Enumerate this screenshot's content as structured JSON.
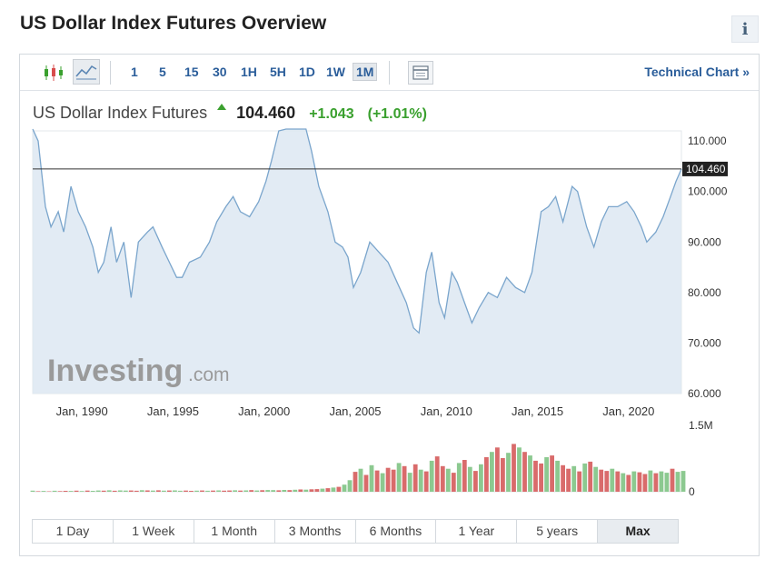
{
  "header": {
    "title": "US Dollar Index Futures Overview",
    "info_icon": "i"
  },
  "toolbar": {
    "timeframes": [
      "1",
      "5",
      "15",
      "30",
      "1H",
      "5H",
      "1D",
      "1W",
      "1M"
    ],
    "active_timeframe": "1M",
    "technical_chart_label": "Technical Chart »"
  },
  "quote": {
    "name": "US Dollar Index Futures",
    "price": "104.460",
    "change": "+1.043",
    "change_pct": "(+1.01%)"
  },
  "watermark": {
    "brand": "Investing",
    "suffix": ".com"
  },
  "colors": {
    "line": "#7aa5cc",
    "area": "#dde8f2",
    "up": "#8cc990",
    "down": "#d96b6b",
    "link": "#2a5d9a",
    "positive": "#3aa02e"
  },
  "chart_data": {
    "type": "area",
    "title": "US Dollar Index Futures",
    "x_tick_labels": [
      "Jan, 1990",
      "Jan, 1995",
      "Jan, 2000",
      "Jan, 2005",
      "Jan, 2010",
      "Jan, 2015",
      "Jan, 2020"
    ],
    "y_tick_labels": [
      "110.000",
      "100.000",
      "90.000",
      "80.000",
      "70.000",
      "60.000"
    ],
    "ylim": [
      60,
      112
    ],
    "xlim": [
      1987.3,
      2022.9
    ],
    "current_value": 104.46,
    "current_value_label": "104.460",
    "series": [
      {
        "points": [
          [
            1987.3,
            115
          ],
          [
            1987.6,
            110
          ],
          [
            1988.0,
            97
          ],
          [
            1988.3,
            93
          ],
          [
            1988.7,
            96
          ],
          [
            1989.0,
            92
          ],
          [
            1989.4,
            101
          ],
          [
            1989.8,
            96
          ],
          [
            1990.2,
            93
          ],
          [
            1990.6,
            89
          ],
          [
            1990.9,
            84
          ],
          [
            1991.2,
            86
          ],
          [
            1991.6,
            93
          ],
          [
            1991.9,
            86
          ],
          [
            1992.3,
            90
          ],
          [
            1992.7,
            79
          ],
          [
            1993.1,
            90
          ],
          [
            1993.6,
            92
          ],
          [
            1993.9,
            93
          ],
          [
            1994.4,
            89
          ],
          [
            1994.8,
            86
          ],
          [
            1995.2,
            83
          ],
          [
            1995.5,
            83
          ],
          [
            1995.9,
            86
          ],
          [
            1996.5,
            87
          ],
          [
            1997.0,
            90
          ],
          [
            1997.4,
            94
          ],
          [
            1997.9,
            97
          ],
          [
            1998.3,
            99
          ],
          [
            1998.7,
            96
          ],
          [
            1999.2,
            95
          ],
          [
            1999.7,
            98
          ],
          [
            2000.1,
            102
          ],
          [
            2000.4,
            106
          ],
          [
            2000.8,
            112
          ],
          [
            2001.2,
            113
          ],
          [
            2001.6,
            114
          ],
          [
            2001.9,
            116
          ],
          [
            2002.3,
            115
          ],
          [
            2002.6,
            108
          ],
          [
            2003.0,
            101
          ],
          [
            2003.5,
            96
          ],
          [
            2003.9,
            90
          ],
          [
            2004.3,
            89
          ],
          [
            2004.6,
            87
          ],
          [
            2004.9,
            81
          ],
          [
            2005.3,
            84
          ],
          [
            2005.8,
            90
          ],
          [
            2006.3,
            88
          ],
          [
            2006.8,
            86
          ],
          [
            2007.3,
            82
          ],
          [
            2007.8,
            78
          ],
          [
            2008.2,
            73
          ],
          [
            2008.5,
            72
          ],
          [
            2008.9,
            84
          ],
          [
            2009.2,
            88
          ],
          [
            2009.6,
            78
          ],
          [
            2009.9,
            75
          ],
          [
            2010.3,
            84
          ],
          [
            2010.6,
            82
          ],
          [
            2011.0,
            78
          ],
          [
            2011.4,
            74
          ],
          [
            2011.8,
            77
          ],
          [
            2012.3,
            80
          ],
          [
            2012.8,
            79
          ],
          [
            2013.3,
            83
          ],
          [
            2013.8,
            81
          ],
          [
            2014.3,
            80
          ],
          [
            2014.7,
            84
          ],
          [
            2015.2,
            96
          ],
          [
            2015.6,
            97
          ],
          [
            2016.0,
            99
          ],
          [
            2016.4,
            94
          ],
          [
            2016.9,
            101
          ],
          [
            2017.2,
            100
          ],
          [
            2017.7,
            93
          ],
          [
            2018.1,
            89
          ],
          [
            2018.5,
            94
          ],
          [
            2018.9,
            97
          ],
          [
            2019.4,
            97
          ],
          [
            2019.9,
            98
          ],
          [
            2020.3,
            96
          ],
          [
            2020.7,
            93
          ],
          [
            2021.0,
            90
          ],
          [
            2021.5,
            92
          ],
          [
            2021.9,
            95
          ],
          [
            2022.3,
            99
          ],
          [
            2022.6,
            102
          ],
          [
            2022.9,
            104.46
          ]
        ]
      }
    ],
    "volume": {
      "y_tick_labels": [
        "1.5M",
        "0"
      ],
      "ylim": [
        0,
        1500000
      ],
      "x_start": 1987.3,
      "x_step": 0.3,
      "values": [
        25000,
        12000,
        18000,
        10000,
        22000,
        15000,
        20000,
        18000,
        24000,
        16000,
        26000,
        20000,
        28000,
        24000,
        32000,
        22000,
        30000,
        26000,
        28000,
        22000,
        34000,
        30000,
        26000,
        32000,
        24000,
        28000,
        30000,
        22000,
        26000,
        20000,
        24000,
        28000,
        22000,
        26000,
        30000,
        24000,
        28000,
        32000,
        26000,
        30000,
        36000,
        28000,
        34000,
        40000,
        36000,
        32000,
        42000,
        38000,
        46000,
        52000,
        48000,
        55000,
        60000,
        70000,
        80000,
        95000,
        110000,
        160000,
        260000,
        450000,
        520000,
        380000,
        600000,
        480000,
        420000,
        540000,
        500000,
        650000,
        580000,
        430000,
        620000,
        500000,
        460000,
        700000,
        800000,
        580000,
        520000,
        430000,
        650000,
        720000,
        560000,
        470000,
        620000,
        780000,
        900000,
        1000000,
        760000,
        880000,
        1080000,
        1000000,
        900000,
        820000,
        700000,
        640000,
        780000,
        820000,
        700000,
        600000,
        520000,
        580000,
        460000,
        640000,
        680000,
        560000,
        500000,
        470000,
        520000,
        460000,
        420000,
        380000,
        460000,
        440000,
        400000,
        480000,
        420000,
        460000,
        430000,
        520000,
        450000,
        470000
      ],
      "direction": [
        "u",
        "d",
        "u",
        "d",
        "u",
        "d",
        "d",
        "u",
        "d",
        "u",
        "d",
        "u",
        "u",
        "d",
        "u",
        "d",
        "u",
        "u",
        "d",
        "d",
        "u",
        "d",
        "u",
        "d",
        "u",
        "d",
        "u",
        "u",
        "d",
        "d",
        "u",
        "d",
        "u",
        "d",
        "u",
        "d",
        "d",
        "u",
        "d",
        "u",
        "d",
        "u",
        "d",
        "u",
        "u",
        "d",
        "u",
        "d",
        "u",
        "d",
        "u",
        "d",
        "d",
        "u",
        "d",
        "u",
        "d",
        "u",
        "u",
        "d",
        "u",
        "d",
        "u",
        "d",
        "u",
        "d",
        "d",
        "u",
        "d",
        "u",
        "d",
        "u",
        "d",
        "u",
        "d",
        "d",
        "u",
        "d",
        "u",
        "d",
        "u",
        "d",
        "u",
        "d",
        "u",
        "d",
        "d",
        "u",
        "d",
        "u",
        "d",
        "u",
        "d",
        "d",
        "u",
        "d",
        "u",
        "d",
        "d",
        "u",
        "d",
        "u",
        "d",
        "u",
        "d",
        "d",
        "u",
        "d",
        "u",
        "d",
        "u",
        "d",
        "d",
        "u",
        "d",
        "u",
        "u",
        "d",
        "u",
        "u"
      ]
    }
  },
  "ranges": [
    "1 Day",
    "1 Week",
    "1 Month",
    "3 Months",
    "6 Months",
    "1 Year",
    "5 years",
    "Max"
  ],
  "active_range": "Max"
}
